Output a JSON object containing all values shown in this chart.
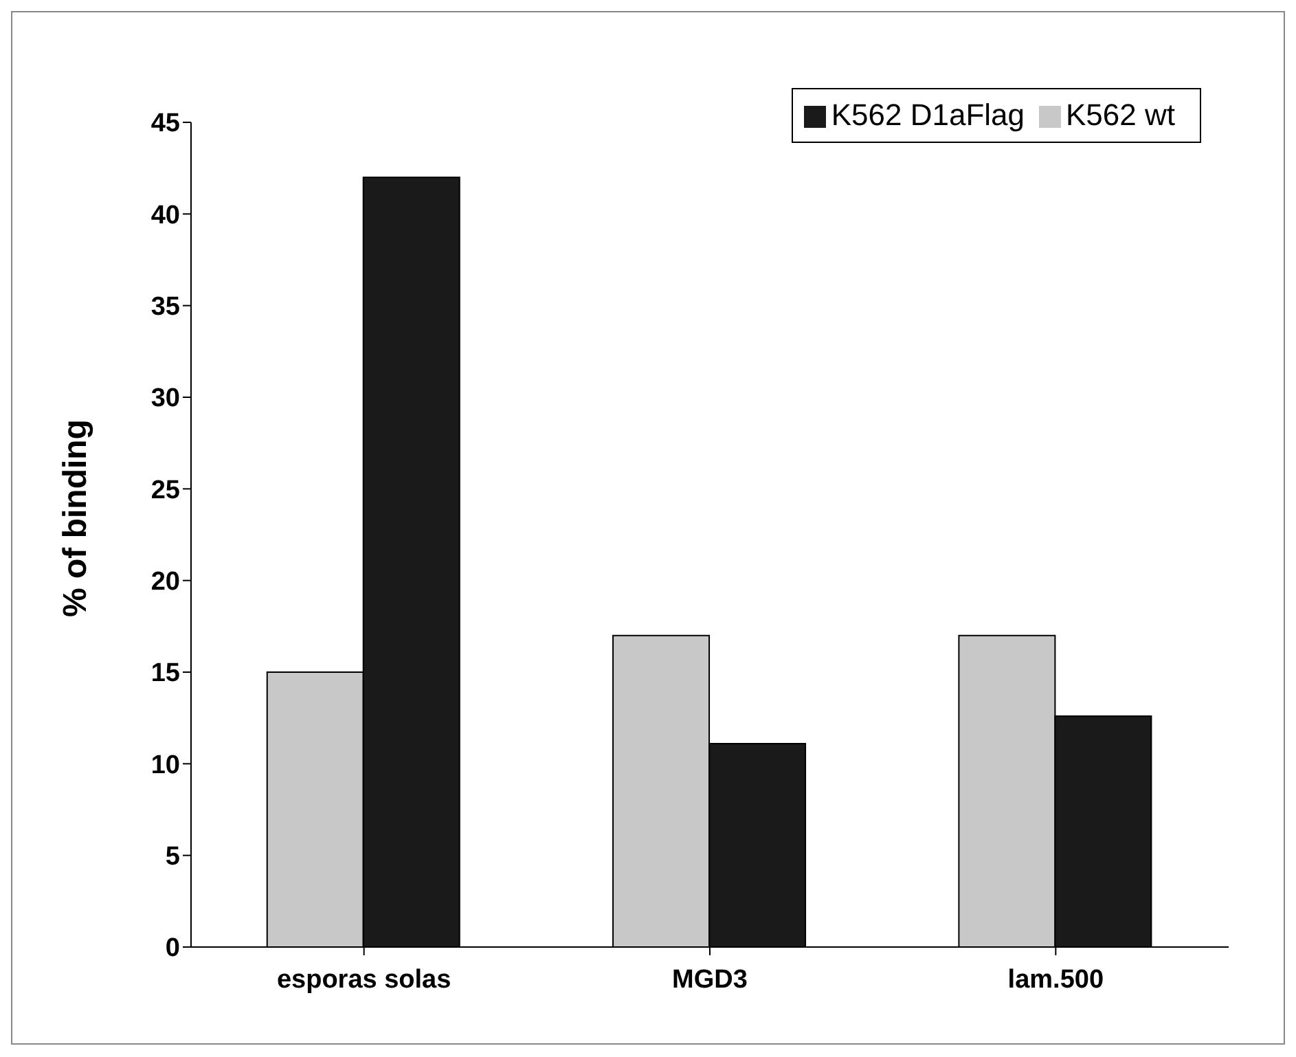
{
  "chart_data": {
    "type": "bar",
    "ylabel": "% of binding",
    "categories": [
      "esporas solas",
      "MGD3",
      "lam.500"
    ],
    "series": [
      {
        "name": "K562 wt",
        "color": "#c8c8c8",
        "values": [
          15,
          17,
          17
        ]
      },
      {
        "name": "K562 D1aFlag",
        "color": "#1a1a1a",
        "values": [
          42,
          11.1,
          12.6
        ]
      }
    ],
    "ylim": [
      0,
      45
    ],
    "yticks": [
      0,
      5,
      10,
      15,
      20,
      25,
      30,
      35,
      40,
      45
    ],
    "grid": false,
    "legend": "top right"
  }
}
